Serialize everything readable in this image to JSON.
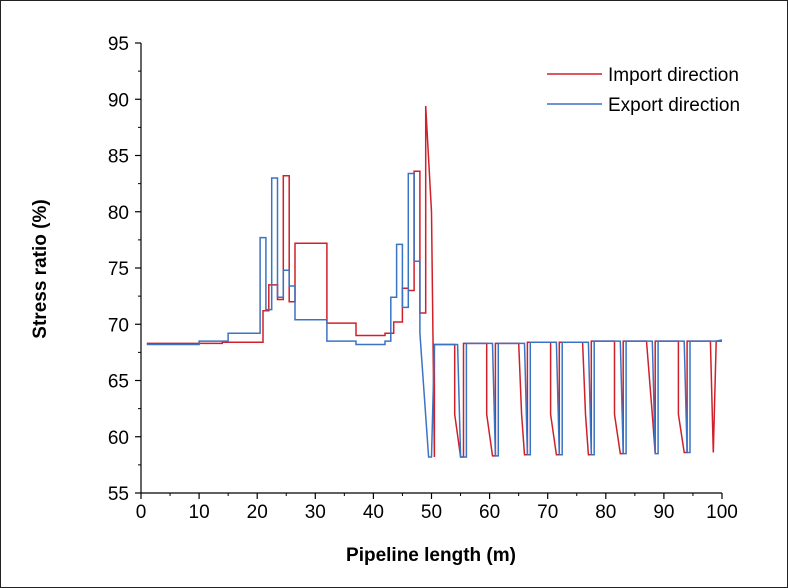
{
  "chart_data": {
    "type": "line",
    "title": "",
    "xlabel": "Pipeline length (m)",
    "ylabel": "Stress ratio (%)",
    "xlim": [
      0,
      100
    ],
    "ylim": [
      55,
      95
    ],
    "xticks": [
      0,
      10,
      20,
      30,
      40,
      50,
      60,
      70,
      80,
      90,
      100
    ],
    "yticks": [
      55,
      60,
      65,
      70,
      75,
      80,
      85,
      90,
      95
    ],
    "grid": false,
    "legend_position": "top-right",
    "series": [
      {
        "name": "Import direction",
        "color": "#d0202a",
        "x": [
          1,
          14,
          14,
          21,
          21,
          22,
          22,
          23.5,
          23.5,
          24.5,
          24.5,
          25.5,
          25.5,
          26.5,
          26.5,
          27.5,
          27.5,
          32,
          32,
          37,
          37,
          42,
          42,
          43.5,
          43.5,
          45,
          45,
          46,
          46,
          47,
          47,
          48,
          48,
          49,
          49,
          50,
          50.5,
          50.5,
          54,
          54,
          55,
          55.5,
          55.5,
          59.5,
          59.5,
          60.5,
          61,
          61,
          65,
          65.5,
          66,
          66.5,
          66.5,
          70.5,
          70.5,
          71.5,
          72,
          72,
          76,
          76.5,
          77,
          77.5,
          77.5,
          81.5,
          81.5,
          82.5,
          83,
          83,
          87,
          87,
          88,
          88.5,
          88.5,
          92.5,
          92.5,
          93.5,
          94,
          94,
          98,
          98.5,
          99,
          100
        ],
        "y": [
          68.3,
          68.3,
          68.4,
          68.4,
          71.2,
          71.2,
          73.5,
          73.5,
          72.2,
          72.2,
          83.2,
          83.2,
          72.0,
          72.0,
          77.2,
          77.2,
          77.2,
          77.2,
          70.1,
          70.1,
          69.0,
          69.0,
          69.2,
          69.2,
          70.2,
          70.2,
          73.2,
          73.2,
          73.0,
          73.0,
          83.6,
          83.6,
          71.0,
          71.0,
          89.4,
          80.0,
          58.2,
          68.2,
          68.2,
          62.0,
          58.2,
          58.2,
          68.3,
          68.3,
          62.0,
          58.3,
          58.3,
          68.3,
          68.3,
          62.0,
          58.4,
          58.4,
          68.4,
          68.4,
          62.0,
          58.4,
          58.4,
          68.4,
          68.4,
          62.0,
          58.4,
          58.4,
          68.5,
          68.5,
          62.0,
          58.5,
          58.5,
          68.5,
          68.5,
          68.5,
          62.0,
          58.5,
          68.5,
          68.5,
          62.0,
          58.6,
          58.6,
          68.5,
          68.5,
          58.6,
          68.5,
          68.5
        ]
      },
      {
        "name": "Export direction",
        "color": "#3a74c4",
        "x": [
          1,
          10,
          10,
          15,
          15,
          20.5,
          20.5,
          21.5,
          21.5,
          22.5,
          22.5,
          23.5,
          23.5,
          24.5,
          24.5,
          25.5,
          25.5,
          26.5,
          26.5,
          27.5,
          27.5,
          32,
          32,
          37,
          37,
          42,
          42,
          43,
          43,
          44,
          44,
          45,
          45,
          46,
          46,
          47,
          47,
          48,
          48,
          49.5,
          50,
          50.5,
          50.5,
          54.5,
          55,
          55.5,
          56,
          56,
          60,
          60.5,
          61,
          61.5,
          61.5,
          65.5,
          66,
          66.5,
          67,
          67,
          71,
          71.5,
          72,
          72.5,
          72.5,
          76.5,
          77,
          77.5,
          78,
          78,
          82,
          82.5,
          83,
          83.5,
          83.5,
          87.5,
          88,
          88.5,
          89,
          89,
          93,
          93.5,
          94,
          94.5,
          94.5,
          99,
          100
        ],
        "y": [
          68.2,
          68.2,
          68.5,
          68.5,
          69.2,
          69.2,
          77.7,
          77.7,
          71.3,
          71.3,
          83.0,
          83.0,
          72.4,
          72.4,
          74.8,
          74.8,
          73.4,
          73.4,
          70.4,
          70.4,
          70.4,
          70.4,
          68.5,
          68.5,
          68.2,
          68.2,
          68.5,
          68.5,
          72.4,
          72.4,
          77.1,
          77.1,
          71.5,
          71.5,
          83.4,
          83.4,
          75.6,
          75.6,
          69.2,
          58.2,
          58.2,
          68.2,
          68.2,
          68.2,
          58.2,
          58.2,
          58.2,
          68.3,
          68.3,
          68.3,
          58.3,
          58.3,
          68.3,
          68.3,
          68.3,
          58.4,
          58.4,
          68.4,
          68.4,
          68.4,
          58.4,
          58.4,
          68.4,
          68.4,
          68.4,
          58.4,
          58.4,
          68.5,
          68.5,
          68.5,
          58.5,
          58.5,
          68.5,
          68.5,
          68.5,
          58.5,
          58.5,
          68.5,
          68.5,
          68.5,
          58.6,
          58.6,
          68.5,
          68.5,
          68.6
        ]
      }
    ]
  }
}
